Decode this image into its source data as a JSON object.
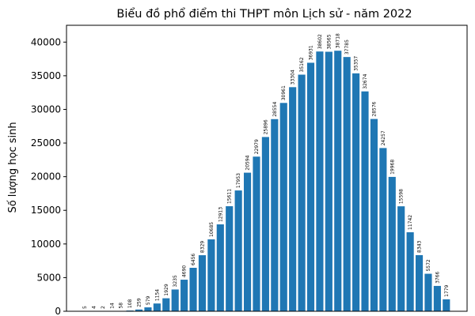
{
  "chart_data": {
    "type": "bar",
    "title": "Biểu đồ phổ điểm thi THPT môn Lịch sử - năm 2022",
    "xlabel": "",
    "ylabel": "Số lượng học sinh",
    "ylim": [
      0,
      42500
    ],
    "yticks": [
      0,
      5000,
      10000,
      15000,
      20000,
      25000,
      30000,
      35000,
      40000
    ],
    "ytick_labels": [
      "0",
      "5000",
      "10000",
      "15000",
      "20000",
      "25000",
      "30000",
      "35000",
      "40000"
    ],
    "grid": false,
    "bar_color": "#1f77b4",
    "values": [
      5,
      4,
      2,
      14,
      58,
      108,
      259,
      579,
      1154,
      1929,
      3235,
      4690,
      6456,
      8329,
      10685,
      12913,
      15611,
      17953,
      20594,
      22979,
      25896,
      28554,
      30961,
      33304,
      35162,
      36931,
      38602,
      38565,
      38718,
      37785,
      35357,
      32674,
      28576,
      24257,
      19968,
      15598,
      11742,
      8343,
      5572,
      3766,
      1779
    ],
    "data_labels": [
      "5",
      "4",
      "2",
      "14",
      "58",
      "108",
      "259",
      "579",
      "1154",
      "1929",
      "3235",
      "4690",
      "6456",
      "8329",
      "10685",
      "12913",
      "15611",
      "17953",
      "20594",
      "22979",
      "25896",
      "28554",
      "30961",
      "33304",
      "35162",
      "36931",
      "38602",
      "38565",
      "38718",
      "37785",
      "35357",
      "32674",
      "28576",
      "24257",
      "19968",
      "15598",
      "11742",
      "8343",
      "5572",
      "3766",
      "1779"
    ]
  }
}
